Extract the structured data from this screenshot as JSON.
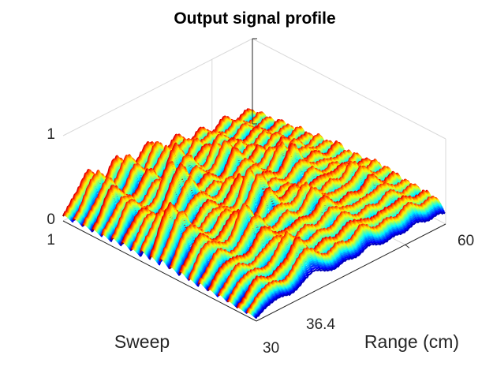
{
  "chart_data": {
    "type": "surface",
    "title": "Output signal profile",
    "xlabel": "Range (cm)",
    "ylabel": "Sweep",
    "zlabel": "",
    "x_ticks": [
      "36.4",
      "60"
    ],
    "x_end_tick": "30",
    "y_ticks": [
      "1"
    ],
    "z_ticks": [
      "0",
      "1"
    ],
    "xlim": [
      30,
      60
    ],
    "ylim": [
      1,
      20
    ],
    "zlim": [
      0,
      1
    ],
    "colormap": "jet",
    "grid": true,
    "rows": 20,
    "cols": 40,
    "z": [
      [
        0.1,
        0.18,
        0.3,
        0.42,
        0.55,
        0.62,
        0.5,
        0.35,
        0.28,
        0.4,
        0.55,
        0.6,
        0.52,
        0.38,
        0.3,
        0.35,
        0.48,
        0.6,
        0.55,
        0.4,
        0.32,
        0.3,
        0.38,
        0.45,
        0.4,
        0.3,
        0.25,
        0.3,
        0.36,
        0.32,
        0.25,
        0.22,
        0.28,
        0.35,
        0.3,
        0.22,
        0.2,
        0.24,
        0.28,
        0.22
      ],
      [
        0.12,
        0.22,
        0.35,
        0.5,
        0.62,
        0.7,
        0.6,
        0.42,
        0.3,
        0.45,
        0.62,
        0.72,
        0.6,
        0.42,
        0.32,
        0.4,
        0.55,
        0.66,
        0.6,
        0.45,
        0.35,
        0.34,
        0.42,
        0.5,
        0.45,
        0.34,
        0.28,
        0.34,
        0.4,
        0.36,
        0.28,
        0.25,
        0.3,
        0.38,
        0.34,
        0.26,
        0.22,
        0.26,
        0.3,
        0.25
      ],
      [
        0.1,
        0.2,
        0.32,
        0.45,
        0.58,
        0.65,
        0.55,
        0.4,
        0.32,
        0.42,
        0.58,
        0.66,
        0.55,
        0.4,
        0.35,
        0.45,
        0.6,
        0.7,
        0.62,
        0.48,
        0.38,
        0.36,
        0.45,
        0.55,
        0.48,
        0.36,
        0.3,
        0.36,
        0.42,
        0.38,
        0.3,
        0.26,
        0.32,
        0.4,
        0.36,
        0.28,
        0.24,
        0.28,
        0.32,
        0.26
      ],
      [
        0.14,
        0.25,
        0.4,
        0.55,
        0.66,
        0.6,
        0.48,
        0.36,
        0.3,
        0.38,
        0.52,
        0.62,
        0.58,
        0.45,
        0.38,
        0.5,
        0.68,
        0.8,
        0.7,
        0.52,
        0.4,
        0.38,
        0.48,
        0.58,
        0.52,
        0.4,
        0.32,
        0.38,
        0.45,
        0.4,
        0.32,
        0.28,
        0.35,
        0.42,
        0.38,
        0.3,
        0.26,
        0.3,
        0.34,
        0.28
      ],
      [
        0.12,
        0.22,
        0.34,
        0.48,
        0.55,
        0.5,
        0.42,
        0.34,
        0.3,
        0.36,
        0.48,
        0.56,
        0.52,
        0.42,
        0.36,
        0.46,
        0.62,
        0.72,
        0.64,
        0.5,
        0.4,
        0.4,
        0.52,
        0.66,
        0.58,
        0.44,
        0.35,
        0.4,
        0.48,
        0.42,
        0.34,
        0.3,
        0.36,
        0.44,
        0.4,
        0.32,
        0.28,
        0.32,
        0.36,
        0.3
      ],
      [
        0.15,
        0.28,
        0.42,
        0.55,
        0.6,
        0.52,
        0.4,
        0.32,
        0.34,
        0.45,
        0.62,
        0.78,
        0.88,
        0.72,
        0.5,
        0.42,
        0.5,
        0.6,
        0.55,
        0.45,
        0.4,
        0.45,
        0.62,
        0.8,
        0.7,
        0.52,
        0.4,
        0.44,
        0.52,
        0.46,
        0.38,
        0.34,
        0.4,
        0.48,
        0.44,
        0.36,
        0.3,
        0.34,
        0.38,
        0.32
      ],
      [
        0.12,
        0.24,
        0.36,
        0.48,
        0.52,
        0.46,
        0.38,
        0.32,
        0.36,
        0.48,
        0.66,
        0.84,
        0.95,
        0.8,
        0.55,
        0.44,
        0.48,
        0.56,
        0.52,
        0.44,
        0.4,
        0.46,
        0.6,
        0.74,
        0.66,
        0.5,
        0.42,
        0.48,
        0.58,
        0.52,
        0.42,
        0.36,
        0.42,
        0.52,
        0.48,
        0.38,
        0.32,
        0.36,
        0.4,
        0.34
      ],
      [
        0.14,
        0.26,
        0.38,
        0.5,
        0.55,
        0.48,
        0.4,
        0.34,
        0.36,
        0.46,
        0.6,
        0.72,
        0.78,
        0.66,
        0.5,
        0.42,
        0.46,
        0.52,
        0.5,
        0.42,
        0.4,
        0.44,
        0.56,
        0.66,
        0.6,
        0.48,
        0.42,
        0.5,
        0.62,
        0.58,
        0.46,
        0.38,
        0.44,
        0.54,
        0.5,
        0.4,
        0.34,
        0.38,
        0.42,
        0.36
      ],
      [
        0.18,
        0.32,
        0.46,
        0.6,
        0.66,
        0.56,
        0.44,
        0.36,
        0.34,
        0.42,
        0.54,
        0.62,
        0.64,
        0.56,
        0.46,
        0.42,
        0.48,
        0.58,
        0.62,
        0.56,
        0.48,
        0.46,
        0.54,
        0.62,
        0.58,
        0.48,
        0.44,
        0.54,
        0.7,
        0.76,
        0.62,
        0.46,
        0.44,
        0.52,
        0.5,
        0.42,
        0.36,
        0.4,
        0.44,
        0.38
      ],
      [
        0.2,
        0.38,
        0.58,
        0.76,
        0.88,
        0.74,
        0.54,
        0.4,
        0.34,
        0.4,
        0.5,
        0.56,
        0.58,
        0.52,
        0.44,
        0.42,
        0.5,
        0.66,
        0.78,
        0.68,
        0.52,
        0.46,
        0.52,
        0.6,
        0.56,
        0.48,
        0.46,
        0.56,
        0.7,
        0.8,
        0.7,
        0.52,
        0.46,
        0.5,
        0.48,
        0.42,
        0.38,
        0.42,
        0.46,
        0.4
      ],
      [
        0.18,
        0.34,
        0.52,
        0.7,
        0.8,
        0.7,
        0.52,
        0.4,
        0.36,
        0.42,
        0.52,
        0.58,
        0.56,
        0.5,
        0.44,
        0.44,
        0.56,
        0.76,
        0.92,
        0.8,
        0.58,
        0.48,
        0.5,
        0.56,
        0.54,
        0.48,
        0.46,
        0.52,
        0.62,
        0.66,
        0.58,
        0.48,
        0.44,
        0.48,
        0.46,
        0.4,
        0.36,
        0.4,
        0.44,
        0.38
      ],
      [
        0.16,
        0.3,
        0.46,
        0.6,
        0.68,
        0.62,
        0.5,
        0.4,
        0.38,
        0.44,
        0.54,
        0.6,
        0.58,
        0.5,
        0.44,
        0.46,
        0.6,
        0.8,
        0.96,
        0.86,
        0.62,
        0.5,
        0.5,
        0.54,
        0.52,
        0.46,
        0.44,
        0.48,
        0.56,
        0.58,
        0.52,
        0.46,
        0.44,
        0.48,
        0.46,
        0.4,
        0.36,
        0.4,
        0.44,
        0.38
      ],
      [
        0.14,
        0.26,
        0.4,
        0.52,
        0.58,
        0.54,
        0.46,
        0.4,
        0.4,
        0.48,
        0.6,
        0.7,
        0.66,
        0.56,
        0.46,
        0.44,
        0.52,
        0.66,
        0.78,
        0.7,
        0.56,
        0.5,
        0.54,
        0.62,
        0.6,
        0.5,
        0.46,
        0.48,
        0.54,
        0.56,
        0.52,
        0.48,
        0.5,
        0.58,
        0.56,
        0.46,
        0.4,
        0.44,
        0.48,
        0.4
      ],
      [
        0.16,
        0.28,
        0.42,
        0.54,
        0.58,
        0.52,
        0.44,
        0.4,
        0.44,
        0.56,
        0.72,
        0.86,
        0.8,
        0.64,
        0.5,
        0.44,
        0.48,
        0.56,
        0.6,
        0.56,
        0.5,
        0.5,
        0.58,
        0.7,
        0.68,
        0.56,
        0.48,
        0.48,
        0.52,
        0.54,
        0.52,
        0.5,
        0.56,
        0.66,
        0.62,
        0.5,
        0.42,
        0.46,
        0.5,
        0.42
      ],
      [
        0.14,
        0.24,
        0.36,
        0.46,
        0.5,
        0.46,
        0.4,
        0.38,
        0.42,
        0.52,
        0.66,
        0.78,
        0.74,
        0.6,
        0.48,
        0.44,
        0.46,
        0.52,
        0.56,
        0.52,
        0.48,
        0.5,
        0.6,
        0.74,
        0.72,
        0.58,
        0.5,
        0.48,
        0.5,
        0.52,
        0.5,
        0.5,
        0.58,
        0.7,
        0.66,
        0.52,
        0.44,
        0.46,
        0.5,
        0.42
      ],
      [
        0.12,
        0.22,
        0.32,
        0.4,
        0.44,
        0.42,
        0.38,
        0.36,
        0.4,
        0.48,
        0.58,
        0.66,
        0.64,
        0.54,
        0.46,
        0.42,
        0.44,
        0.48,
        0.52,
        0.5,
        0.46,
        0.48,
        0.56,
        0.66,
        0.64,
        0.54,
        0.48,
        0.46,
        0.48,
        0.5,
        0.48,
        0.48,
        0.54,
        0.62,
        0.58,
        0.48,
        0.42,
        0.44,
        0.46,
        0.4
      ],
      [
        0.1,
        0.2,
        0.3,
        0.38,
        0.42,
        0.4,
        0.36,
        0.34,
        0.38,
        0.44,
        0.52,
        0.58,
        0.56,
        0.5,
        0.44,
        0.4,
        0.42,
        0.46,
        0.5,
        0.48,
        0.44,
        0.46,
        0.52,
        0.6,
        0.58,
        0.5,
        0.46,
        0.44,
        0.46,
        0.48,
        0.46,
        0.46,
        0.5,
        0.56,
        0.54,
        0.46,
        0.4,
        0.42,
        0.44,
        0.38
      ],
      [
        0.1,
        0.18,
        0.28,
        0.36,
        0.4,
        0.38,
        0.34,
        0.32,
        0.36,
        0.42,
        0.5,
        0.62,
        0.72,
        0.64,
        0.5,
        0.42,
        0.4,
        0.44,
        0.48,
        0.46,
        0.42,
        0.44,
        0.5,
        0.56,
        0.54,
        0.48,
        0.44,
        0.42,
        0.44,
        0.46,
        0.44,
        0.44,
        0.48,
        0.52,
        0.5,
        0.44,
        0.4,
        0.42,
        0.44,
        0.38
      ],
      [
        0.08,
        0.16,
        0.26,
        0.34,
        0.38,
        0.36,
        0.32,
        0.3,
        0.34,
        0.4,
        0.48,
        0.6,
        0.7,
        0.62,
        0.48,
        0.4,
        0.38,
        0.42,
        0.46,
        0.44,
        0.4,
        0.42,
        0.48,
        0.54,
        0.52,
        0.46,
        0.42,
        0.4,
        0.42,
        0.44,
        0.42,
        0.42,
        0.46,
        0.5,
        0.48,
        0.42,
        0.38,
        0.4,
        0.42,
        0.36
      ],
      [
        0.08,
        0.14,
        0.24,
        0.32,
        0.36,
        0.34,
        0.3,
        0.28,
        0.32,
        0.38,
        0.46,
        0.56,
        0.64,
        0.58,
        0.46,
        0.38,
        0.36,
        0.4,
        0.44,
        0.42,
        0.38,
        0.4,
        0.46,
        0.52,
        0.5,
        0.44,
        0.4,
        0.38,
        0.4,
        0.42,
        0.4,
        0.4,
        0.44,
        0.48,
        0.46,
        0.4,
        0.36,
        0.38,
        0.4,
        0.34
      ]
    ]
  }
}
